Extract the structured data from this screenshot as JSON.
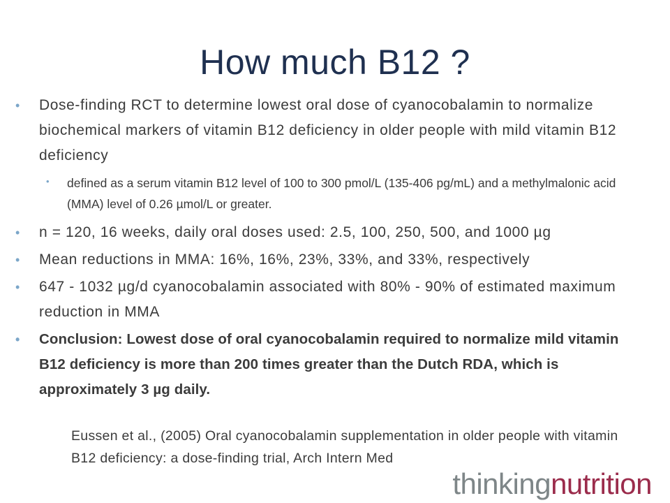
{
  "slide": {
    "title": "How much B12 ?",
    "bullets": [
      {
        "text": "Dose-finding RCT to determine lowest oral dose of cyanocobalamin to normalize biochemical markers of vitamin B12 deficiency in older people with mild vitamin B12 deficiency",
        "sub": "defined as a serum vitamin B12 level of 100 to 300 pmol/L (135-406 pg/mL) and a methylmalonic acid (MMA) level of 0.26 µmol/L or greater."
      },
      {
        "text": "n = 120, 16 weeks, daily oral doses used: 2.5, 100, 250, 500, and 1000 µg"
      },
      {
        "text": "Mean reductions in MMA: 16%, 16%, 23%, 33%, and 33%, respectively"
      },
      {
        "text": "647 - 1032 µg/d cyanocobalamin associated with 80% - 90% of estimated maximum reduction in MMA"
      },
      {
        "text": "Conclusion:  Lowest dose of oral cyanocobalamin required to normalize mild vitamin B12 deficiency is more than 200 times greater than the Dutch RDA, which is approximately 3 µg daily."
      }
    ],
    "citation": "Eussen et al., (2005) Oral cyanocobalamin supplementation in older people with  vitamin B12 deficiency: a dose-finding trial, Arch Intern Med",
    "bullet_symbol": "•"
  },
  "logo": {
    "part1": "thinking",
    "part2": "nutrition",
    "colors": {
      "part1": "#7e8688",
      "part2": "#9b2c4c"
    }
  },
  "colors": {
    "title": "#1f3050",
    "body_text": "#3b3b3b",
    "bullet": "#7ba6c9"
  }
}
